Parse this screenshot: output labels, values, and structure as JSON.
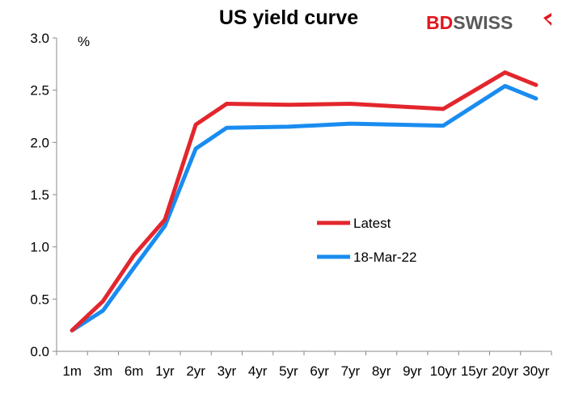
{
  "brand": {
    "part1": "BD",
    "part2": "SWISS",
    "accent": "#e3161e",
    "grey": "#5a5a5a"
  },
  "chart_data": {
    "type": "line",
    "title": "US yield curve",
    "ylabel": "%",
    "xlabel": "",
    "categories": [
      "1m",
      "3m",
      "6m",
      "1yr",
      "2yr",
      "3yr",
      "4yr",
      "5yr",
      "6yr",
      "7yr",
      "8yr",
      "9yr",
      "10yr",
      "15yr",
      "20yr",
      "30yr"
    ],
    "ylim": [
      0,
      3.0
    ],
    "yticks": [
      0.0,
      0.5,
      1.0,
      1.5,
      2.0,
      2.5,
      3.0
    ],
    "ytick_labels": [
      "0.0",
      "0.5",
      "1.0",
      "1.5",
      "2.0",
      "2.5",
      "3.0"
    ],
    "legend_position": "center-right",
    "grid": false,
    "series": [
      {
        "name": "Latest",
        "color": "#e3262d",
        "x": [
          "1m",
          "3m",
          "6m",
          "1yr",
          "2yr",
          "3yr",
          "5yr",
          "7yr",
          "10yr",
          "20yr",
          "30yr"
        ],
        "values": [
          0.2,
          0.48,
          0.92,
          1.26,
          2.17,
          2.37,
          2.36,
          2.37,
          2.32,
          2.67,
          2.55
        ]
      },
      {
        "name": "18-Mar-22",
        "color": "#1a8cf0",
        "x": [
          "1m",
          "3m",
          "6m",
          "1yr",
          "2yr",
          "3yr",
          "5yr",
          "7yr",
          "10yr",
          "20yr",
          "30yr"
        ],
        "values": [
          0.2,
          0.39,
          0.8,
          1.2,
          1.94,
          2.14,
          2.15,
          2.18,
          2.16,
          2.54,
          2.42
        ]
      }
    ]
  }
}
